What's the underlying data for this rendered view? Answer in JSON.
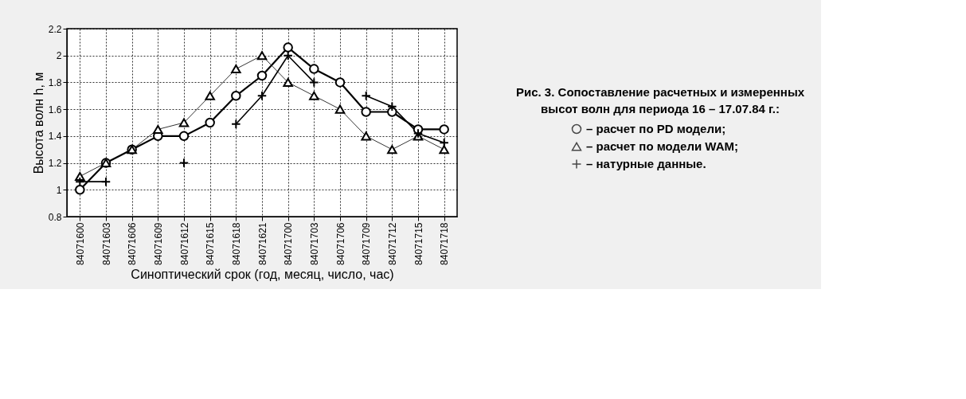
{
  "chart_data": {
    "type": "line",
    "xlabel": "Синоптический срок (год, месяц, число, час)",
    "ylabel": "Высота волн h, м",
    "categories": [
      "84071600",
      "84071603",
      "84071606",
      "84071609",
      "84071612",
      "84071615",
      "84071618",
      "84071621",
      "84071700",
      "84071703",
      "84071706",
      "84071709",
      "84071712",
      "84071715",
      "84071718"
    ],
    "series": [
      {
        "name": "– расчет по PD модели;",
        "color": "#000000",
        "marker": "circle",
        "values": [
          1.0,
          1.2,
          1.3,
          1.4,
          1.4,
          1.5,
          1.7,
          1.85,
          2.06,
          1.9,
          1.8,
          1.58,
          1.58,
          1.45,
          1.45
        ]
      },
      {
        "name": "– расчет по модели WAM;",
        "color": "#000000",
        "marker": "triangle",
        "values": [
          1.1,
          1.2,
          1.3,
          1.45,
          1.5,
          1.7,
          1.9,
          2.0,
          1.8,
          1.7,
          1.6,
          1.4,
          1.3,
          1.4,
          1.3
        ]
      },
      {
        "name": "– натурные данные.",
        "color": "#000000",
        "marker": "cross",
        "values": [
          1.06,
          1.06,
          null,
          null,
          1.2,
          null,
          1.49,
          1.7,
          2.0,
          1.8,
          null,
          1.7,
          1.62,
          1.42,
          1.35
        ]
      }
    ],
    "ylim": [
      0.8,
      2.2
    ],
    "yticks": [
      {
        "value": 0.8,
        "label": "0.8"
      },
      1,
      1.2,
      1.4,
      1.6,
      1.8,
      2,
      2.2
    ],
    "grid": true,
    "legend": "right",
    "annotations": [
      "Рис. 3. Сопоставление расчетных и измеренных",
      "высот волн для периода 16 – 17.07.84 г.:"
    ]
  }
}
